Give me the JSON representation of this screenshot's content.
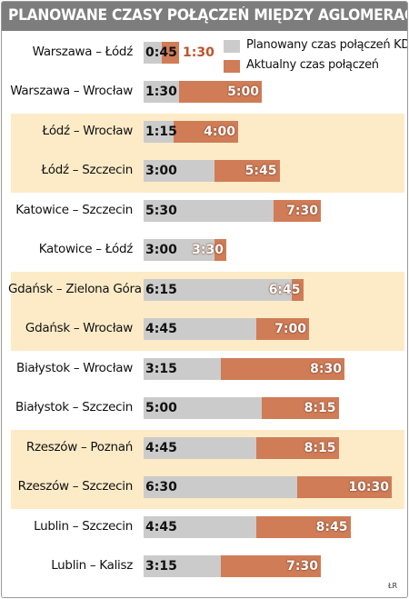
{
  "chart_data": {
    "type": "bar",
    "title": "PLANOWANE CZASY POŁĄCZEŃ MIĘDZY AGLOMERACJAMI",
    "orientation": "horizontal",
    "categories": [
      "Warszawa – Łódź",
      "Warszawa – Wrocław",
      "Łódź – Wrocław",
      "Łódź – Szczecin",
      "Katowice – Szczecin",
      "Katowice – Łódź",
      "Gdańsk – Zielona Góra",
      "Gdańsk – Wrocław",
      "Białystok – Wrocław",
      "Białystok – Szczecin",
      "Rzeszów – Poznań",
      "Rzeszów – Szczecin",
      "Lublin – Szczecin",
      "Lublin – Kalisz"
    ],
    "series": [
      {
        "name": "Planowany czas połączeń KDP",
        "color": "#cbcbcb",
        "values": [
          "0:45",
          "1:30",
          "1:15",
          "3:00",
          "5:30",
          "3:00",
          "6:15",
          "4:45",
          "3:15",
          "5:00",
          "4:45",
          "6:30",
          "4:45",
          "3:15"
        ]
      },
      {
        "name": "Aktualny czas połączeń",
        "color": "#cf7c57",
        "values": [
          "1:30",
          "5:00",
          "4:00",
          "5:45",
          "7:30",
          "3:30",
          "6:45",
          "7:00",
          "8:30",
          "8:15",
          "8:15",
          "10:30",
          "8:45",
          "7:30"
        ]
      }
    ],
    "bands": [
      0,
      1,
      0,
      1,
      0,
      1,
      0
    ],
    "band_colors": [
      "#ffffff",
      "#fdebc7"
    ],
    "legend_position": "top-right",
    "credit": "ŁR"
  }
}
